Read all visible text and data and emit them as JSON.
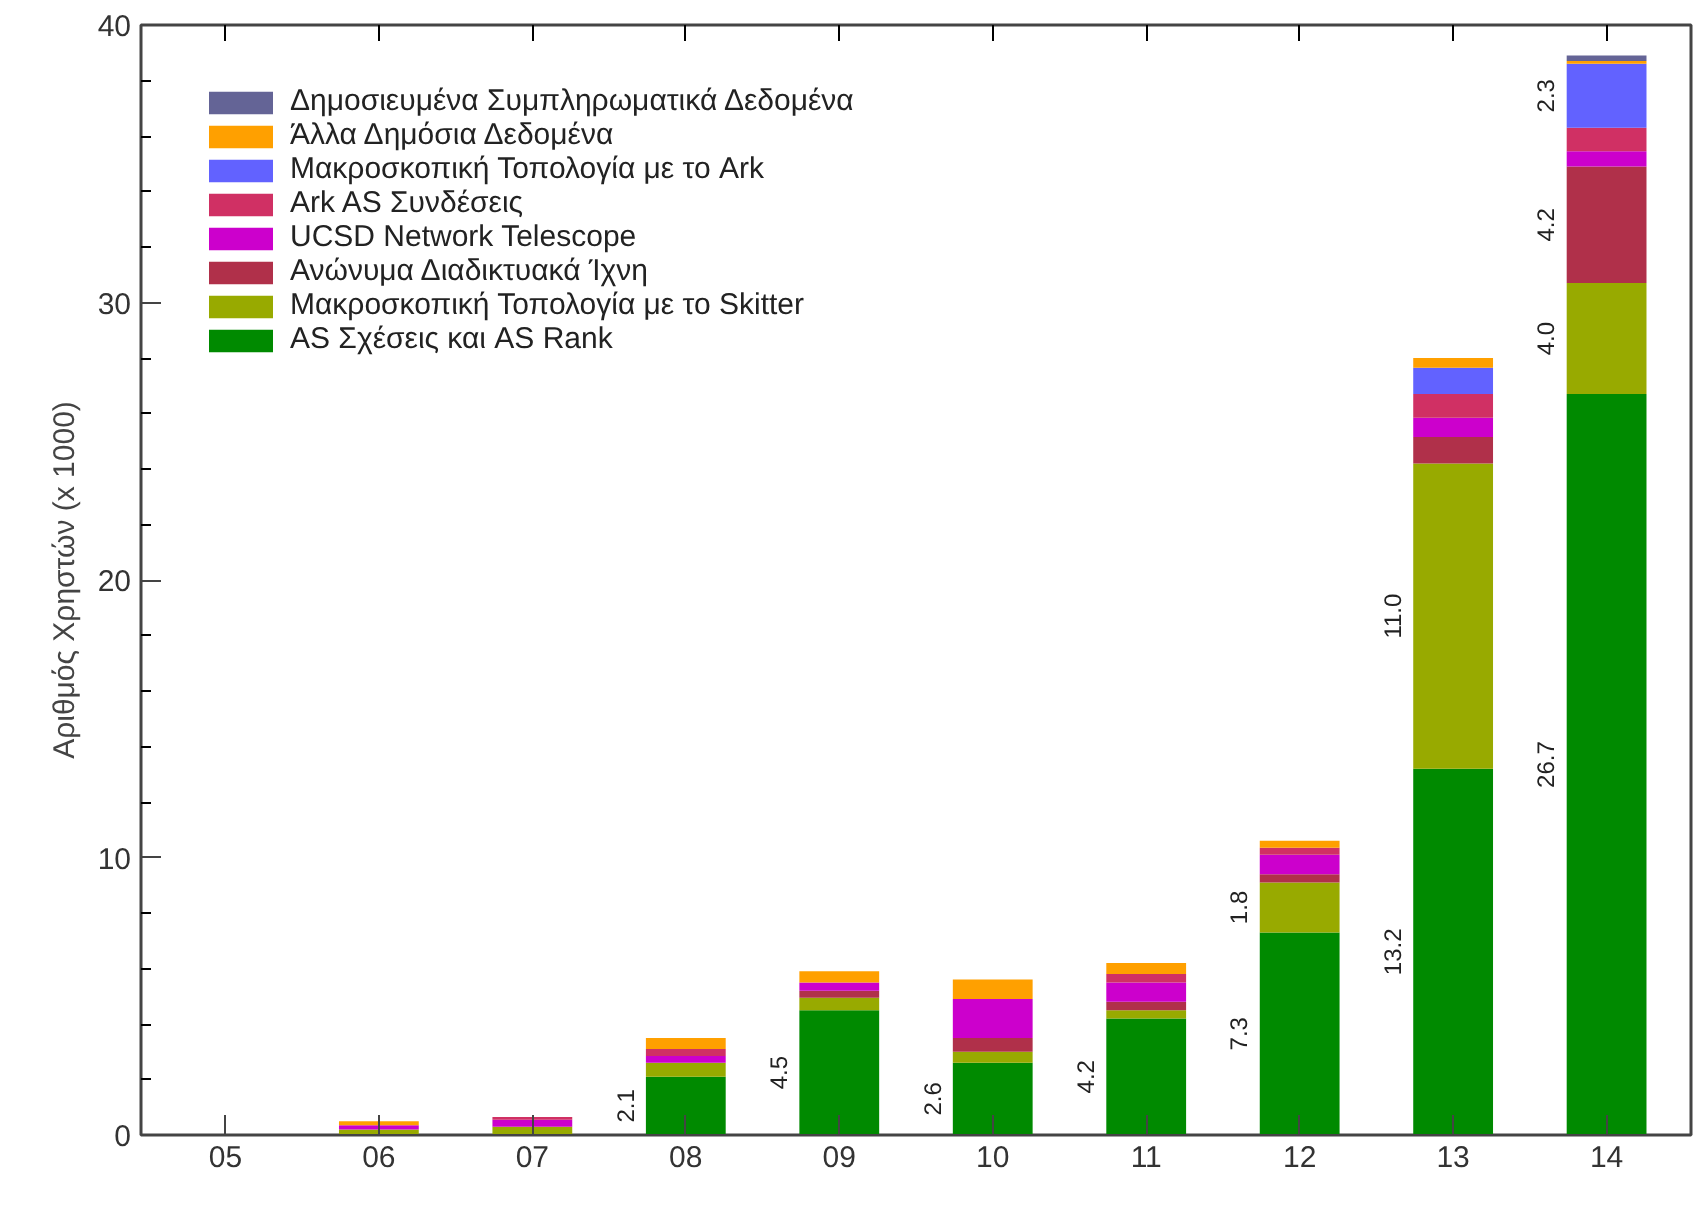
{
  "chart_data": {
    "type": "bar",
    "stacked": true,
    "ylabel": "Αριθμός Χρηστών (x 1000)",
    "categories": [
      "05",
      "06",
      "07",
      "08",
      "09",
      "10",
      "11",
      "12",
      "13",
      "14"
    ],
    "ylim": [
      0,
      40
    ],
    "yticks": [
      0,
      10,
      20,
      30,
      40
    ],
    "grid": false,
    "legend": "top left",
    "series": [
      {
        "name": "AS Σχέσεις και AS Rank",
        "color": "#008a00",
        "values": [
          null,
          null,
          null,
          2.1,
          4.5,
          2.6,
          4.2,
          7.3,
          13.2,
          26.7
        ],
        "value_labels": [
          null,
          null,
          null,
          "2.1",
          "4.5",
          "2.6",
          "4.2",
          "7.3",
          "13.2",
          "26.7"
        ]
      },
      {
        "name": "Μακροσκοπική Τοπολογία με το Skitter",
        "color": "#98aa00",
        "values": [
          null,
          0.2,
          0.3,
          0.5,
          0.45,
          0.4,
          0.3,
          1.8,
          11.0,
          4.0
        ],
        "value_labels": [
          null,
          null,
          null,
          null,
          null,
          null,
          null,
          "1.8",
          "11.0",
          "4.0"
        ]
      },
      {
        "name": "Ανώνυμα Διαδικτυακά Ίχνη",
        "color": "#b0304a",
        "values": [
          null,
          null,
          null,
          null,
          0.25,
          0.5,
          0.3,
          0.3,
          0.95,
          4.2
        ],
        "value_labels": [
          null,
          null,
          null,
          null,
          null,
          null,
          null,
          null,
          null,
          "4.2"
        ]
      },
      {
        "name": "UCSD Network Telescope",
        "color": "#cc00cc",
        "values": [
          null,
          0.15,
          0.25,
          0.25,
          0.3,
          1.4,
          0.7,
          0.7,
          0.7,
          0.55
        ]
      },
      {
        "name": "Ark AS Συνδέσεις",
        "color": "#d03064",
        "values": [
          null,
          null,
          0.1,
          0.25,
          null,
          null,
          0.3,
          0.25,
          0.85,
          0.85
        ]
      },
      {
        "name": "Μακροσκοπική Τοπολογία με το Ark",
        "color": "#6262ff",
        "values": [
          null,
          null,
          null,
          null,
          null,
          null,
          null,
          null,
          0.95,
          2.3
        ],
        "value_labels": [
          null,
          null,
          null,
          null,
          null,
          null,
          null,
          null,
          null,
          "2.3"
        ]
      },
      {
        "name": "Άλλα Δημόσια Δεδομένα",
        "color": "#ffa000",
        "values": [
          null,
          0.15,
          null,
          0.4,
          0.4,
          0.7,
          0.4,
          0.25,
          0.35,
          0.1
        ]
      },
      {
        "name": "Δημοσιευμένα Συμπληρωματικά Δεδομένα",
        "color": "#646496",
        "values": [
          null,
          null,
          null,
          null,
          null,
          null,
          null,
          null,
          null,
          0.2
        ]
      }
    ]
  }
}
